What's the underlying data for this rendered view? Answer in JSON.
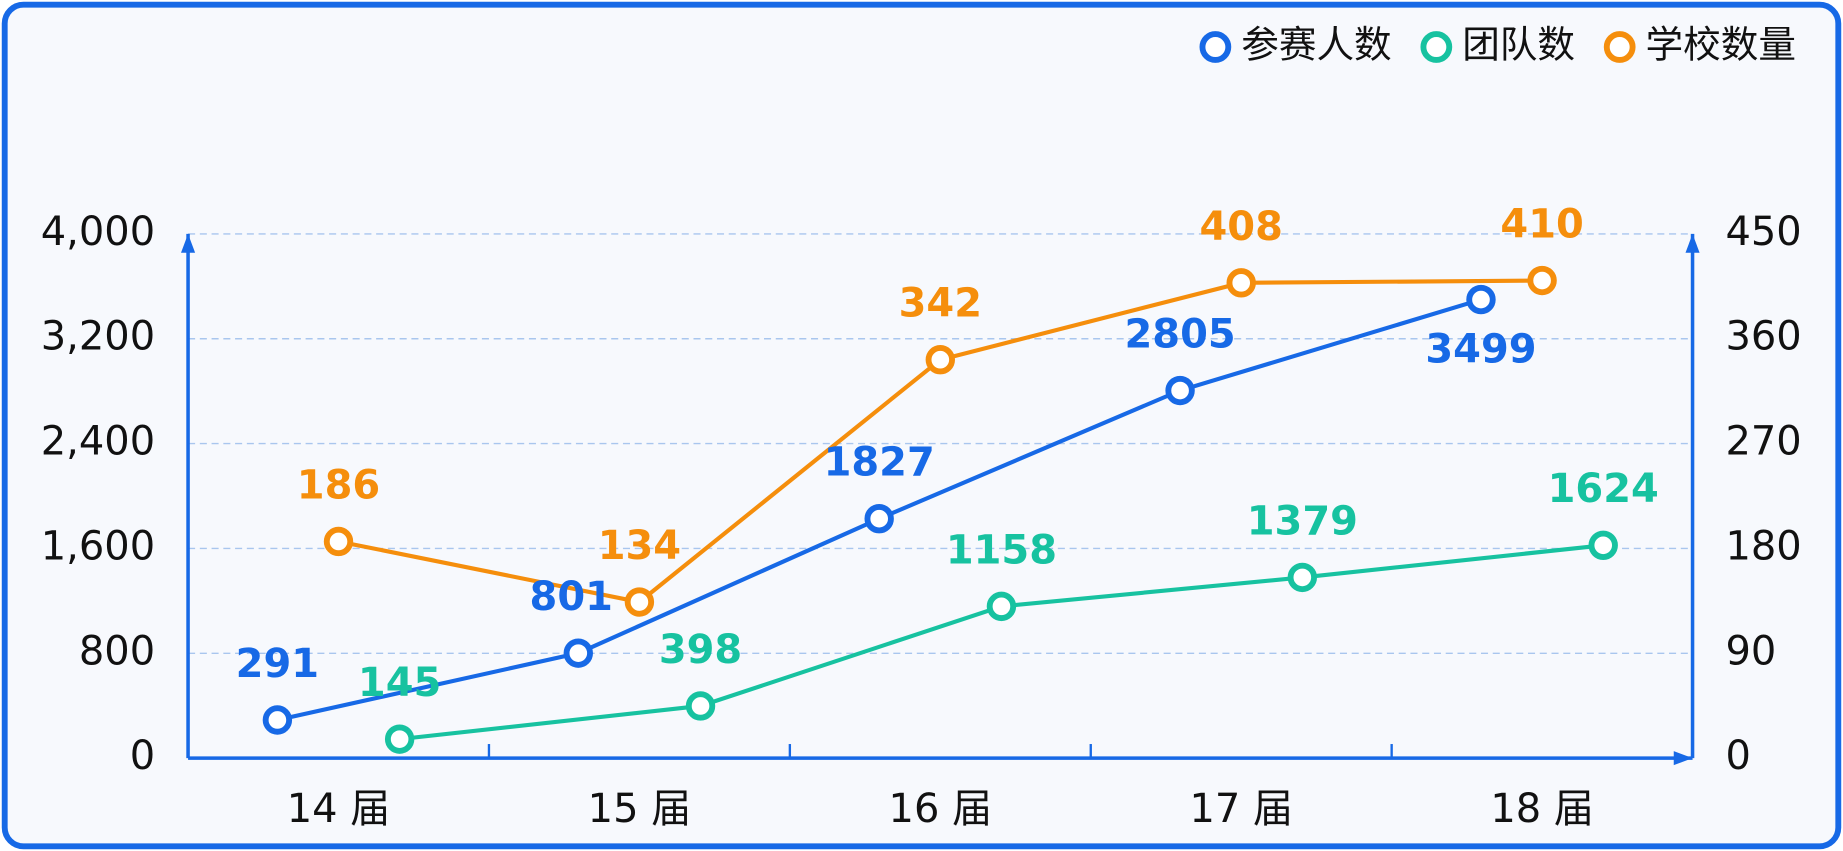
{
  "chart_data": {
    "type": "line",
    "categories": [
      "14 届",
      "15 届",
      "16 届",
      "17 届",
      "18 届"
    ],
    "series": [
      {
        "name": "参赛人数",
        "color": "#1769e6",
        "values": [
          291,
          801,
          1827,
          2805,
          3499
        ]
      },
      {
        "name": "团队数",
        "color": "#17c2a0",
        "values": [
          145,
          398,
          1158,
          1379,
          1624
        ]
      },
      {
        "name": "学校数量",
        "color": "#f58e0c",
        "values": [
          186,
          134,
          342,
          408,
          410
        ],
        "axis": "y2"
      }
    ],
    "ylim": [
      0,
      4000
    ],
    "yticks": [
      0,
      800,
      {
        "value": 1600,
        "label": "1,600"
      },
      {
        "value": 2400,
        "label": "2,400"
      },
      {
        "value": 3200,
        "label": "3,200"
      },
      {
        "value": 4000,
        "label": "4,000"
      }
    ],
    "y2lim": [
      0,
      450
    ],
    "y2ticks": [
      0,
      90,
      180,
      270,
      360,
      450
    ],
    "grid": true,
    "legend": "top-right",
    "axis_color": "#1769e6"
  }
}
